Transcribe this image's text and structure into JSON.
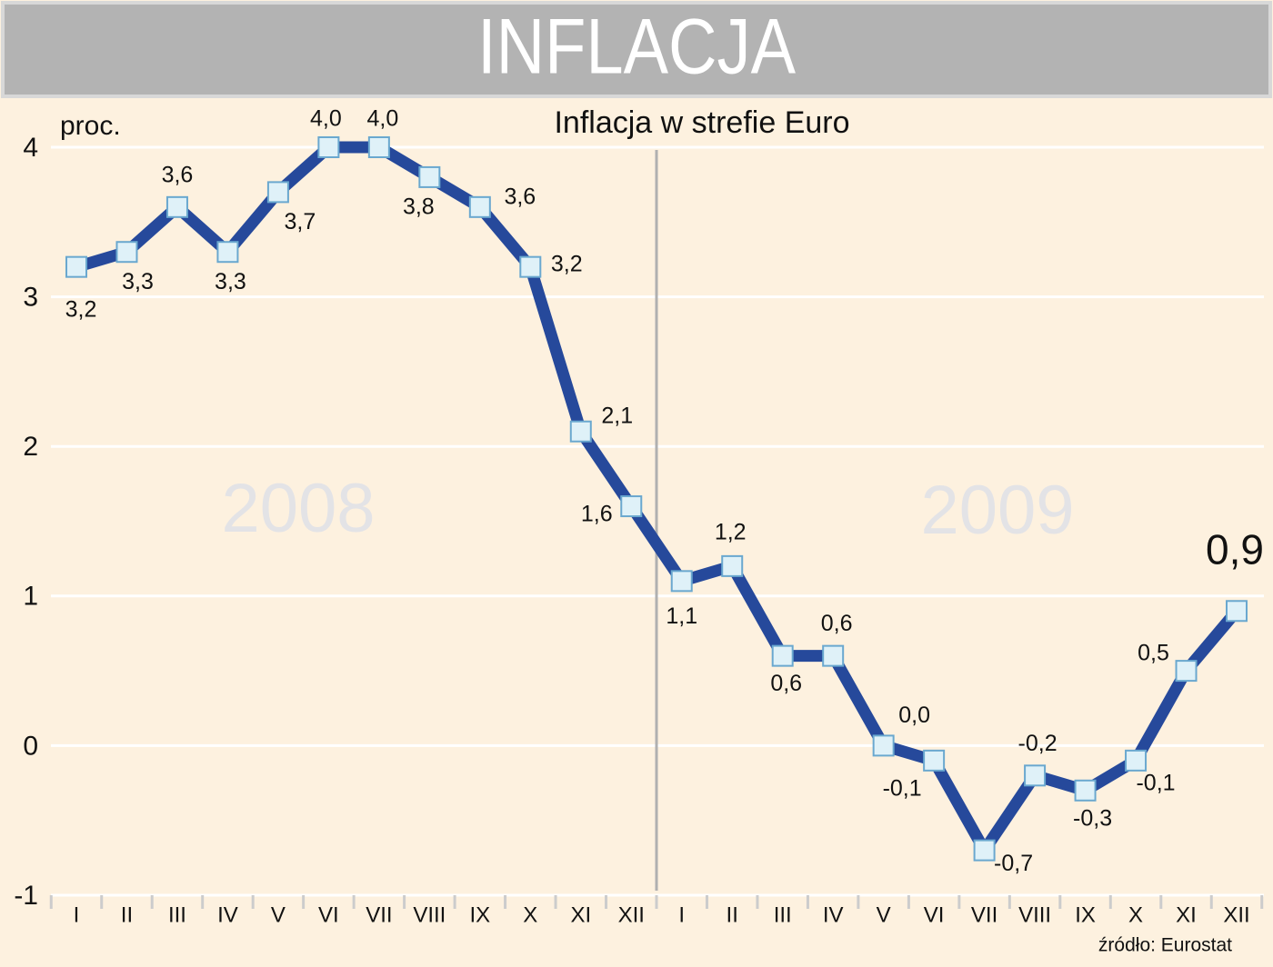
{
  "chart_data": {
    "type": "line",
    "header": "INFLACJA",
    "title": "Inflacja w strefie Euro",
    "ylabel": "proc.",
    "year_labels": [
      "2008",
      "2009"
    ],
    "source": "źródło: Eurostat",
    "categories": [
      "I",
      "II",
      "III",
      "IV",
      "V",
      "VI",
      "VII",
      "VIII",
      "IX",
      "X",
      "XI",
      "XII",
      "I",
      "II",
      "III",
      "IV",
      "V",
      "VI",
      "VII",
      "VIII",
      "IX",
      "X",
      "XI",
      "XII"
    ],
    "values": [
      3.2,
      3.3,
      3.6,
      3.3,
      3.7,
      4.0,
      4.0,
      3.8,
      3.6,
      3.2,
      2.1,
      1.6,
      1.1,
      1.2,
      0.6,
      0.6,
      0.0,
      -0.1,
      -0.7,
      -0.2,
      -0.3,
      -0.1,
      0.5,
      0.9
    ],
    "value_labels": [
      "3,2",
      "3,3",
      "3,6",
      "3,3",
      "3,7",
      "4,0",
      "4,0",
      "3,8",
      "3,6",
      "3,2",
      "2,1",
      "1,6",
      "1,1",
      "1,2",
      "0,6",
      "0,6",
      "0,0",
      "-0,1",
      "-0,7",
      "-0,2",
      "-0,3",
      "-0,1",
      "0,5",
      "0,9"
    ],
    "color": "#26499b",
    "marker_color": "#dff1f8",
    "ylim": [
      -1,
      4
    ],
    "yticks": [
      -1,
      0,
      1,
      2,
      3,
      4
    ],
    "grid": true
  }
}
